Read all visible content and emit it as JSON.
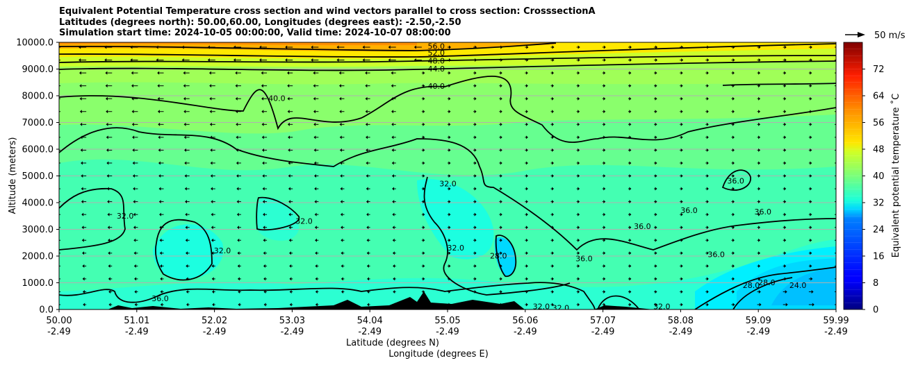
{
  "title_lines": [
    "Equivalent Potential Temperature cross section and wind vectors parallel to cross section: CrosssectionA",
    "Latitudes (degrees north): 50.00,60.00, Longitudes (degrees east): -2.50,-2.50",
    "Simulation start time: 2024-10-05 00:00:00, Valid time: 2024-10-07 08:00:00"
  ],
  "chart_data": {
    "type": "heatmap",
    "subtype": "vertical cross section (filled contours, contour lines, wind quiver)",
    "xlabel_line1": "Latitude (degrees N)",
    "xlabel_line2": "Longitude (degrees E)",
    "ylabel": "Altitude (meters)",
    "ylim": [
      0,
      10000
    ],
    "xlim": [
      50.0,
      59.99
    ],
    "x_ticks": [
      {
        "lat": "50.00",
        "lon": "-2.49"
      },
      {
        "lat": "51.01",
        "lon": "-2.49"
      },
      {
        "lat": "52.02",
        "lon": "-2.49"
      },
      {
        "lat": "53.03",
        "lon": "-2.49"
      },
      {
        "lat": "54.04",
        "lon": "-2.49"
      },
      {
        "lat": "55.05",
        "lon": "-2.49"
      },
      {
        "lat": "56.06",
        "lon": "-2.49"
      },
      {
        "lat": "57.07",
        "lon": "-2.49"
      },
      {
        "lat": "58.08",
        "lon": "-2.49"
      },
      {
        "lat": "59.09",
        "lon": "-2.49"
      },
      {
        "lat": "59.99",
        "lon": "-2.49"
      }
    ],
    "y_ticks": [
      "0.0",
      "1000.0",
      "2000.0",
      "3000.0",
      "4000.0",
      "5000.0",
      "6000.0",
      "7000.0",
      "8000.0",
      "9000.0",
      "10000.0"
    ],
    "y_tick_values": [
      0,
      1000,
      2000,
      3000,
      4000,
      5000,
      6000,
      7000,
      8000,
      9000,
      10000
    ],
    "grid": "horizontal",
    "colorbar": {
      "label": "Equivalent potential temperature ˚C",
      "range": [
        0,
        80
      ],
      "ticks": [
        "0",
        "8",
        "16",
        "24",
        "32",
        "40",
        "48",
        "56",
        "64",
        "72"
      ],
      "tick_values": [
        0,
        8,
        16,
        24,
        32,
        40,
        48,
        56,
        64,
        72
      ],
      "colormap": "jet"
    },
    "quiver_key": {
      "label": "50 m/s",
      "speed": 50
    },
    "contour_levels": [
      24,
      28,
      32,
      36,
      40,
      44,
      48,
      52,
      56
    ],
    "field_summary": [
      {
        "region": "near surface, 57.5-60 N, 0-2500 m",
        "value_C": 26
      },
      {
        "region": "near surface, 50-57 N, 0-3500 m",
        "value_C": 32
      },
      {
        "region": "mid levels 4000-7000 m",
        "value_C": 36
      },
      {
        "region": "7000-9000 m",
        "value_C": 42
      },
      {
        "region": "top 9500-10000 m, 50-54 N",
        "value_C": 58
      }
    ],
    "contour_labels": [
      {
        "text": "56.0",
        "lat": 54.85,
        "alt": 9850
      },
      {
        "text": "52.0",
        "lat": 54.85,
        "alt": 9600
      },
      {
        "text": "48.0",
        "lat": 54.85,
        "alt": 9300
      },
      {
        "text": "44.0",
        "lat": 54.85,
        "alt": 9000
      },
      {
        "text": "40.0",
        "lat": 54.85,
        "alt": 8350
      },
      {
        "text": "40.0",
        "lat": 52.8,
        "alt": 7900
      },
      {
        "text": "32.0",
        "lat": 50.85,
        "alt": 3500
      },
      {
        "text": "32.0",
        "lat": 53.15,
        "alt": 3300
      },
      {
        "text": "32.0",
        "lat": 52.1,
        "alt": 2200
      },
      {
        "text": "32.0",
        "lat": 55.0,
        "alt": 4700
      },
      {
        "text": "32.0",
        "lat": 55.1,
        "alt": 2300
      },
      {
        "text": "28.0",
        "lat": 55.65,
        "alt": 2000
      },
      {
        "text": "36.0",
        "lat": 51.3,
        "alt": 400
      },
      {
        "text": "36.0",
        "lat": 56.75,
        "alt": 1900
      },
      {
        "text": "36.0",
        "lat": 57.5,
        "alt": 3100
      },
      {
        "text": "36.0",
        "lat": 58.1,
        "alt": 3700
      },
      {
        "text": "36.0",
        "lat": 58.45,
        "alt": 2050
      },
      {
        "text": "36.0",
        "lat": 58.7,
        "alt": 4800
      },
      {
        "text": "36.0",
        "lat": 59.05,
        "alt": 3650
      },
      {
        "text": "32.0",
        "lat": 57.75,
        "alt": 100
      },
      {
        "text": "32.0",
        "lat": 56.2,
        "alt": 100
      },
      {
        "text": "32.0",
        "lat": 56.45,
        "alt": 50
      },
      {
        "text": "28.0",
        "lat": 58.9,
        "alt": 900
      },
      {
        "text": "28.0",
        "lat": 59.1,
        "alt": 1000
      },
      {
        "text": "24.0",
        "lat": 59.5,
        "alt": 900
      }
    ]
  }
}
